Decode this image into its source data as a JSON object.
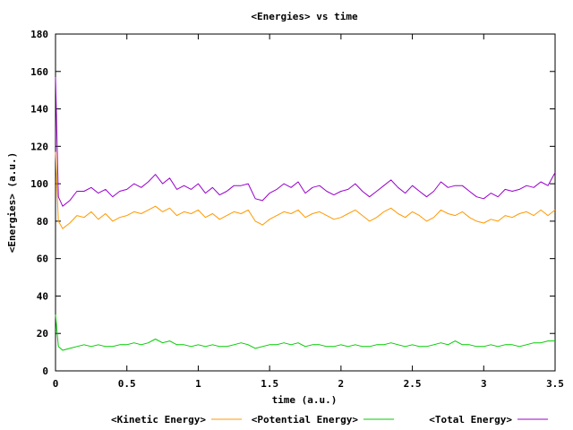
{
  "chart_data": {
    "type": "line",
    "title": "<Energies> vs time",
    "xlabel": "time (a.u.)",
    "ylabel": "<Energies> (a.u.)",
    "xlim": [
      0,
      3.5
    ],
    "ylim": [
      0,
      180
    ],
    "x_ticks": [
      "0",
      "0.5",
      "1",
      "1.5",
      "2",
      "2.5",
      "3",
      "3.5"
    ],
    "y_ticks": [
      "0",
      "20",
      "40",
      "60",
      "80",
      "100",
      "120",
      "140",
      "160",
      "180"
    ],
    "grid": false,
    "legend_position": "bottom",
    "series": [
      {
        "name": "<Kinetic Energy>",
        "color": "#ff9900",
        "x": [
          0,
          0.02,
          0.05,
          0.1,
          0.15,
          0.2,
          0.25,
          0.3,
          0.35,
          0.4,
          0.45,
          0.5,
          0.55,
          0.6,
          0.65,
          0.7,
          0.75,
          0.8,
          0.85,
          0.9,
          0.95,
          1.0,
          1.05,
          1.1,
          1.15,
          1.2,
          1.25,
          1.3,
          1.35,
          1.4,
          1.45,
          1.5,
          1.55,
          1.6,
          1.65,
          1.7,
          1.75,
          1.8,
          1.85,
          1.9,
          1.95,
          2.0,
          2.05,
          2.1,
          2.15,
          2.2,
          2.25,
          2.3,
          2.35,
          2.4,
          2.45,
          2.5,
          2.55,
          2.6,
          2.65,
          2.7,
          2.75,
          2.8,
          2.85,
          2.9,
          2.95,
          3.0,
          3.05,
          3.1,
          3.15,
          3.2,
          3.25,
          3.3,
          3.35,
          3.4,
          3.45,
          3.5
        ],
        "values": [
          117,
          80,
          76,
          79,
          83,
          82,
          85,
          81,
          84,
          80,
          82,
          83,
          85,
          84,
          86,
          88,
          85,
          87,
          83,
          85,
          84,
          86,
          82,
          84,
          81,
          83,
          85,
          84,
          86,
          80,
          78,
          81,
          83,
          85,
          84,
          86,
          82,
          84,
          85,
          83,
          81,
          82,
          84,
          86,
          83,
          80,
          82,
          85,
          87,
          84,
          82,
          85,
          83,
          80,
          82,
          86,
          84,
          83,
          85,
          82,
          80,
          79,
          81,
          80,
          83,
          82,
          84,
          85,
          83,
          86,
          83,
          86
        ]
      },
      {
        "name": "<Potential Energy>",
        "color": "#00cc00",
        "x": [
          0,
          0.02,
          0.05,
          0.1,
          0.15,
          0.2,
          0.25,
          0.3,
          0.35,
          0.4,
          0.45,
          0.5,
          0.55,
          0.6,
          0.65,
          0.7,
          0.75,
          0.8,
          0.85,
          0.9,
          0.95,
          1.0,
          1.05,
          1.1,
          1.15,
          1.2,
          1.25,
          1.3,
          1.35,
          1.4,
          1.45,
          1.5,
          1.55,
          1.6,
          1.65,
          1.7,
          1.75,
          1.8,
          1.85,
          1.9,
          1.95,
          2.0,
          2.05,
          2.1,
          2.15,
          2.2,
          2.25,
          2.3,
          2.35,
          2.4,
          2.45,
          2.5,
          2.55,
          2.6,
          2.65,
          2.7,
          2.75,
          2.8,
          2.85,
          2.9,
          2.95,
          3.0,
          3.05,
          3.1,
          3.15,
          3.2,
          3.25,
          3.3,
          3.35,
          3.4,
          3.45,
          3.5
        ],
        "values": [
          30,
          13,
          11,
          12,
          13,
          14,
          13,
          14,
          13,
          13,
          14,
          14,
          15,
          14,
          15,
          17,
          15,
          16,
          14,
          14,
          13,
          14,
          13,
          14,
          13,
          13,
          14,
          15,
          14,
          12,
          13,
          14,
          14,
          15,
          14,
          15,
          13,
          14,
          14,
          13,
          13,
          14,
          13,
          14,
          13,
          13,
          14,
          14,
          15,
          14,
          13,
          14,
          13,
          13,
          14,
          15,
          14,
          16,
          14,
          14,
          13,
          13,
          14,
          13,
          14,
          14,
          13,
          14,
          15,
          15,
          16,
          16
        ]
      },
      {
        "name": "<Total Energy>",
        "color": "#9900cc",
        "x": [
          0,
          0.02,
          0.05,
          0.1,
          0.15,
          0.2,
          0.25,
          0.3,
          0.35,
          0.4,
          0.45,
          0.5,
          0.55,
          0.6,
          0.65,
          0.7,
          0.75,
          0.8,
          0.85,
          0.9,
          0.95,
          1.0,
          1.05,
          1.1,
          1.15,
          1.2,
          1.25,
          1.3,
          1.35,
          1.4,
          1.45,
          1.5,
          1.55,
          1.6,
          1.65,
          1.7,
          1.75,
          1.8,
          1.85,
          1.9,
          1.95,
          2.0,
          2.05,
          2.1,
          2.15,
          2.2,
          2.25,
          2.3,
          2.35,
          2.4,
          2.45,
          2.5,
          2.55,
          2.6,
          2.65,
          2.7,
          2.75,
          2.8,
          2.85,
          2.9,
          2.95,
          3.0,
          3.05,
          3.1,
          3.15,
          3.2,
          3.25,
          3.3,
          3.35,
          3.4,
          3.45,
          3.5
        ],
        "values": [
          157,
          93,
          88,
          91,
          96,
          96,
          98,
          95,
          97,
          93,
          96,
          97,
          100,
          98,
          101,
          105,
          100,
          103,
          97,
          99,
          97,
          100,
          95,
          98,
          94,
          96,
          99,
          99,
          100,
          92,
          91,
          95,
          97,
          100,
          98,
          101,
          95,
          98,
          99,
          96,
          94,
          96,
          97,
          100,
          96,
          93,
          96,
          99,
          102,
          98,
          95,
          99,
          96,
          93,
          96,
          101,
          98,
          99,
          99,
          96,
          93,
          92,
          95,
          93,
          97,
          96,
          97,
          99,
          98,
          101,
          99,
          106
        ]
      }
    ]
  }
}
